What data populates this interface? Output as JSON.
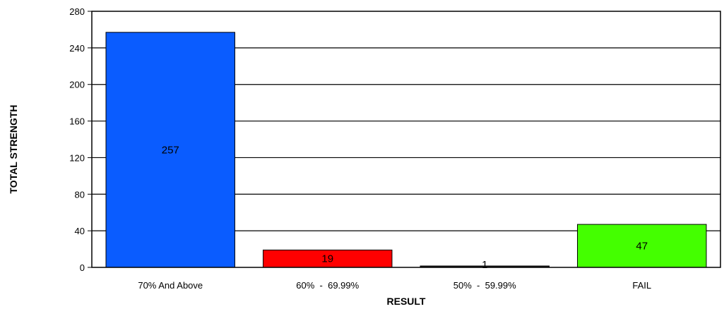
{
  "chart_data": {
    "type": "bar",
    "title": "",
    "xlabel": "RESULT",
    "ylabel": "TOTAL STRENGTH",
    "categories": [
      "70% And Above",
      "60% - 69.99%",
      "50% - 59.99%",
      "FAIL"
    ],
    "category_display": [
      "70% And Above",
      "60%  -  69.99%",
      "50%  -  59.99%",
      "FAIL"
    ],
    "values": [
      257,
      19,
      1,
      47
    ],
    "data_labels": [
      "257",
      "19",
      "1",
      "47"
    ],
    "bar_colors": [
      "#0a5cff",
      "#ff0000",
      "#222222",
      "#44ff00"
    ],
    "ylim": [
      0,
      280
    ],
    "yticks": [
      0,
      40,
      80,
      120,
      160,
      200,
      240,
      280
    ],
    "ytick_labels": [
      "0",
      "40",
      "80",
      "120",
      "160",
      "200",
      "240",
      "280"
    ],
    "grid": true,
    "legend": "none"
  }
}
